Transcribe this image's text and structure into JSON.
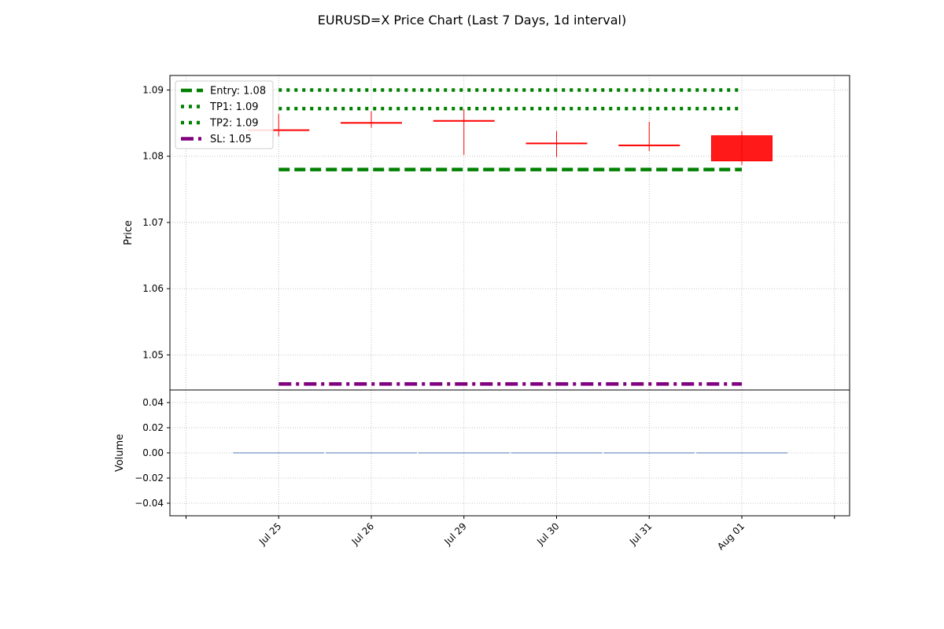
{
  "chart_data": {
    "type": "candlestick",
    "title": "EURUSD=X Price Chart (Last 7 Days, 1d interval)",
    "categories": [
      "Jul 25",
      "Jul 26",
      "Jul 29",
      "Jul 30",
      "Jul 31",
      "Aug 01"
    ],
    "candles": [
      {
        "date": "Jul 25",
        "open": 1.084,
        "high": 1.0864,
        "low": 1.083,
        "close": 1.0839
      },
      {
        "date": "Jul 26",
        "open": 1.0851,
        "high": 1.0868,
        "low": 1.0843,
        "close": 1.085
      },
      {
        "date": "Jul 29",
        "open": 1.0854,
        "high": 1.0871,
        "low": 1.0802,
        "close": 1.0853
      },
      {
        "date": "Jul 30",
        "open": 1.082,
        "high": 1.0838,
        "low": 1.0799,
        "close": 1.0819
      },
      {
        "date": "Jul 31",
        "open": 1.0817,
        "high": 1.0852,
        "low": 1.0808,
        "close": 1.0816
      },
      {
        "date": "Aug 01",
        "open": 1.0831,
        "high": 1.0838,
        "low": 1.0787,
        "close": 1.0793
      }
    ],
    "candle_color": "#ff0000",
    "lines": [
      {
        "label": "Entry: 1.08",
        "value": 1.078,
        "color": "#008000",
        "style": "dashed"
      },
      {
        "label": "TP1: 1.09",
        "value": 1.09,
        "color": "#008000",
        "style": "dotted"
      },
      {
        "label": "TP2: 1.09",
        "value": 1.0872,
        "color": "#008000",
        "style": "dotted"
      },
      {
        "label": "SL: 1.05",
        "value": 1.0456,
        "color": "#800080",
        "style": "dashdot"
      }
    ],
    "price_axis": {
      "ylabel": "Price",
      "ylim": [
        1.0447,
        1.0922
      ],
      "ticks": [
        1.05,
        1.06,
        1.07,
        1.08,
        1.09
      ],
      "tick_labels": [
        "1.05",
        "1.06",
        "1.07",
        "1.08",
        "1.09"
      ]
    },
    "volume_axis": {
      "ylabel": "Volume",
      "ylim": [
        -0.05,
        0.05
      ],
      "ticks": [
        -0.04,
        -0.02,
        0.0,
        0.02,
        0.04
      ],
      "tick_labels": [
        "−0.04",
        "−0.02",
        "0.00",
        "0.02",
        "0.04"
      ],
      "values": [
        0,
        0,
        0,
        0,
        0,
        0
      ],
      "color": "#4f76b0"
    },
    "legend_position": "upper-left",
    "grid": true
  }
}
